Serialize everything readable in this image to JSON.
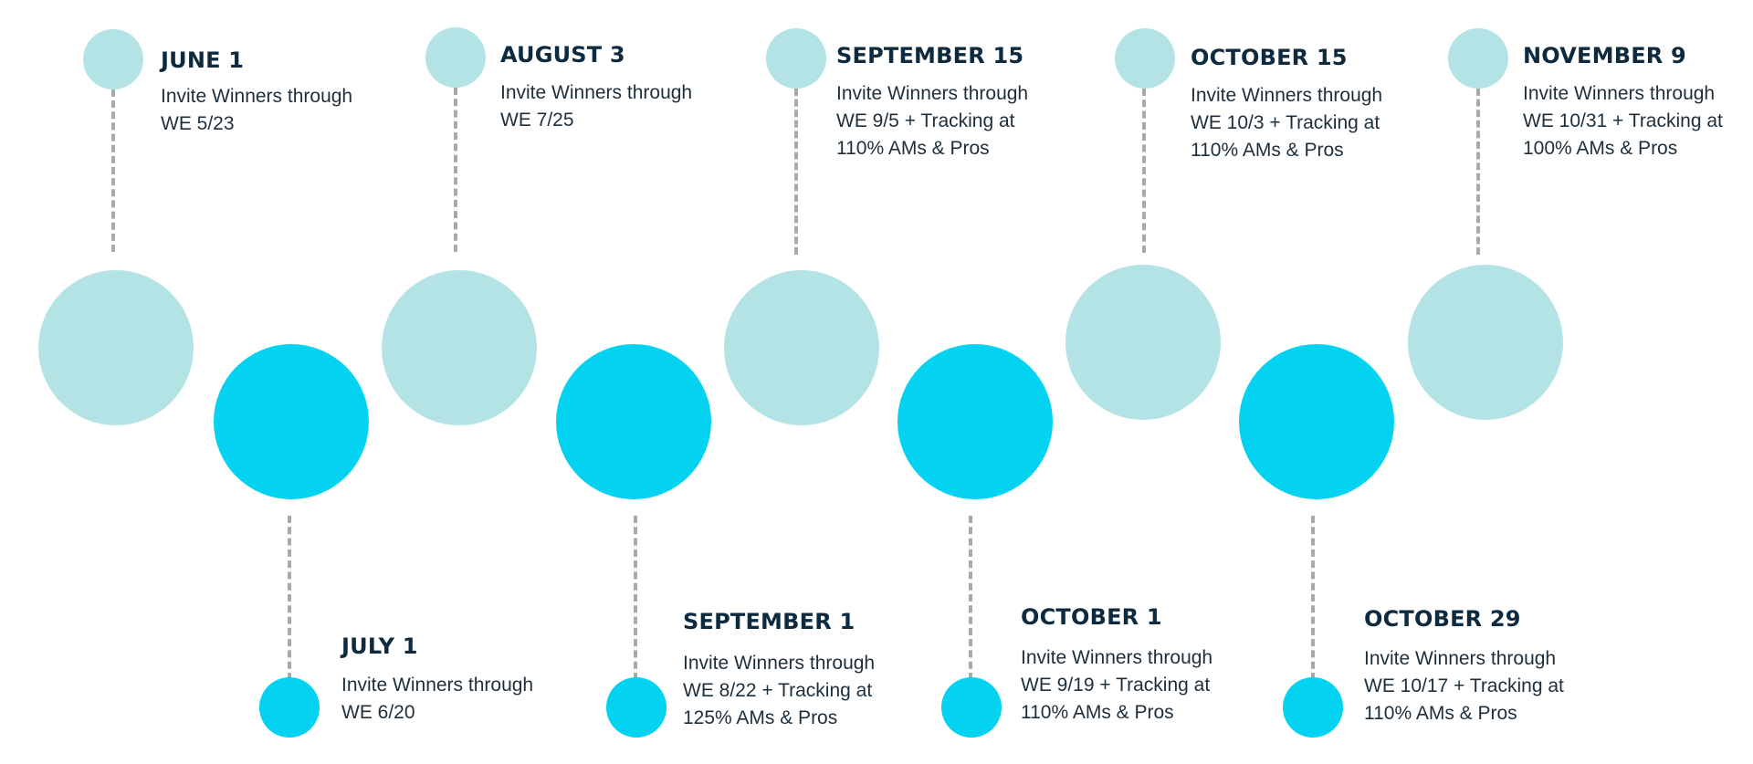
{
  "colors": {
    "light_circle": "#b3e3e5",
    "bright_circle": "#03d3f1",
    "connector": "#a9a9a9",
    "title": "#0d2a3f",
    "text": "#1e2f3b"
  },
  "milestones": [
    {
      "date": "JUNE 1",
      "lines": [
        "Invite Winners through",
        "WE 5/23"
      ]
    },
    {
      "date": "JULY 1",
      "lines": [
        "Invite Winners through",
        "WE 6/20"
      ]
    },
    {
      "date": "AUGUST 3",
      "lines": [
        "Invite Winners through",
        "WE 7/25"
      ]
    },
    {
      "date": "SEPTEMBER 1",
      "lines": [
        "Invite Winners through",
        "WE 8/22 + Tracking at",
        "125% AMs & Pros"
      ]
    },
    {
      "date": "SEPTEMBER 15",
      "lines": [
        "Invite Winners through",
        "WE 9/5 + Tracking at",
        "110% AMs & Pros"
      ]
    },
    {
      "date": "OCTOBER 1",
      "lines": [
        "Invite Winners through",
        "WE 9/19 + Tracking at",
        "110% AMs & Pros"
      ]
    },
    {
      "date": "OCTOBER 15",
      "lines": [
        "Invite Winners through",
        "WE 10/3 + Tracking at",
        "110% AMs & Pros"
      ]
    },
    {
      "date": "OCTOBER 29",
      "lines": [
        "Invite Winners through",
        "WE 10/17  + Tracking at",
        "110% AMs & Pros"
      ]
    },
    {
      "date": "NOVEMBER 9",
      "lines": [
        "Invite Winners through",
        "WE 10/31 + Tracking at",
        "100% AMs & Pros"
      ]
    }
  ]
}
